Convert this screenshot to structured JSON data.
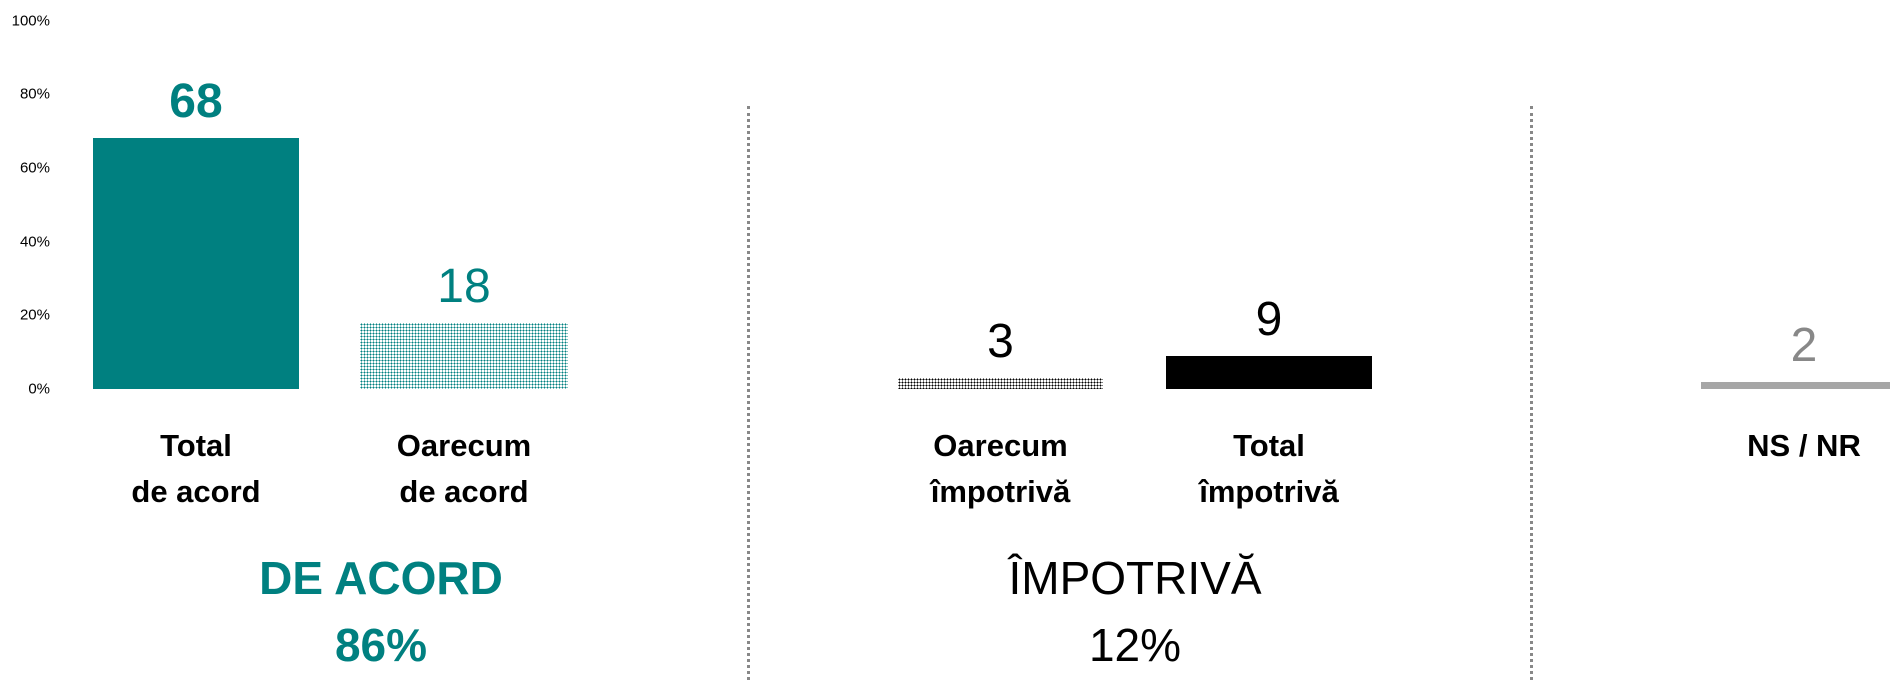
{
  "chart_data": {
    "type": "bar",
    "categories": [
      "Total\nde acord",
      "Oarecum\nde acord",
      "Oarecum\nîmpotrivă",
      "Total\nîmpotrivă",
      "NS / NR"
    ],
    "values": [
      68,
      18,
      3,
      9,
      2
    ],
    "colors": [
      "#008080",
      "#008080",
      "#000000",
      "#000000",
      "#a6a6a6"
    ],
    "patterns": [
      false,
      true,
      true,
      false,
      false
    ],
    "ylim": [
      0,
      100
    ],
    "yticks": [
      {
        "value": 0,
        "label": "0%"
      },
      {
        "value": 20,
        "label": "20%"
      },
      {
        "value": 40,
        "label": "40%"
      },
      {
        "value": 60,
        "label": "60%"
      },
      {
        "value": 80,
        "label": "80%"
      },
      {
        "value": 100,
        "label": "100%"
      }
    ],
    "groups": [
      {
        "name": "DE ACORD",
        "value": 86,
        "value_label": "86%"
      },
      {
        "name": "ÎMPOTRIVĂ",
        "value": 12,
        "value_label": "12%"
      }
    ]
  }
}
